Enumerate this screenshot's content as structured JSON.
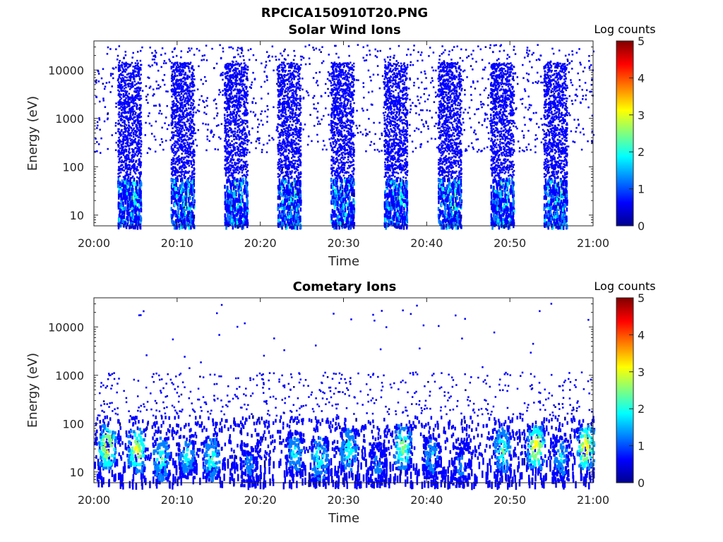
{
  "figure_title": "RPCICA150910T20.PNG",
  "colormap": [
    "#00008f",
    "#0000ff",
    "#0080ff",
    "#00ffff",
    "#80ff80",
    "#ffff00",
    "#ff8000",
    "#ff0000",
    "#800000"
  ],
  "chart_data": [
    {
      "type": "heatmap",
      "title": "Solar Wind Ions",
      "xlabel": "Time",
      "ylabel": "Energy (eV)",
      "x_ticks": [
        "20:00",
        "20:10",
        "20:20",
        "20:30",
        "20:40",
        "20:50",
        "21:00"
      ],
      "x_range_minutes": [
        0,
        60
      ],
      "y_ticks": [
        "10",
        "100",
        "1000",
        "10000"
      ],
      "y_scale": "log",
      "y_range_eV": [
        6,
        40000
      ],
      "colorbar": {
        "label": "Log counts",
        "ticks": [
          "0",
          "1",
          "2",
          "3",
          "4",
          "5"
        ],
        "range": [
          0,
          5
        ]
      },
      "ion_bursts_start_minutes": [
        2.8,
        9.2,
        15.6,
        22.0,
        28.4,
        34.8,
        41.3,
        47.6,
        54.0
      ],
      "background_noise_energy_eV": [
        200,
        35000
      ],
      "peak_log_counts": 2.5
    },
    {
      "type": "heatmap",
      "title": "Cometary Ions",
      "xlabel": "Time",
      "ylabel": "Energy (eV)",
      "x_ticks": [
        "20:00",
        "20:10",
        "20:20",
        "20:30",
        "20:40",
        "20:50",
        "21:00"
      ],
      "x_range_minutes": [
        0,
        60
      ],
      "y_ticks": [
        "10",
        "100",
        "1000",
        "10000"
      ],
      "y_scale": "log",
      "y_range_eV": [
        6,
        40000
      ],
      "colorbar": {
        "label": "Log counts",
        "ticks": [
          "0",
          "1",
          "2",
          "3",
          "4",
          "5"
        ],
        "range": [
          0,
          5
        ]
      },
      "hotspots": [
        {
          "minute": 1.5,
          "energy_eV": 35,
          "log_counts": 3.5
        },
        {
          "minute": 5.0,
          "energy_eV": 30,
          "log_counts": 3.3
        },
        {
          "minute": 8.0,
          "energy_eV": 20,
          "log_counts": 2.3
        },
        {
          "minute": 11.0,
          "energy_eV": 22,
          "log_counts": 2.0
        },
        {
          "minute": 14.0,
          "energy_eV": 20,
          "log_counts": 2.3
        },
        {
          "minute": 18.5,
          "energy_eV": 15,
          "log_counts": 1.3
        },
        {
          "minute": 24.0,
          "energy_eV": 25,
          "log_counts": 2.0
        },
        {
          "minute": 27.0,
          "energy_eV": 20,
          "log_counts": 2.3
        },
        {
          "minute": 30.5,
          "energy_eV": 30,
          "log_counts": 2.3
        },
        {
          "minute": 34.0,
          "energy_eV": 15,
          "log_counts": 1.3
        },
        {
          "minute": 37.0,
          "energy_eV": 35,
          "log_counts": 2.8
        },
        {
          "minute": 40.5,
          "energy_eV": 22,
          "log_counts": 1.8
        },
        {
          "minute": 44.0,
          "energy_eV": 15,
          "log_counts": 1.3
        },
        {
          "minute": 49.0,
          "energy_eV": 30,
          "log_counts": 2.5
        },
        {
          "minute": 53.0,
          "energy_eV": 35,
          "log_counts": 3.5
        },
        {
          "minute": 56.0,
          "energy_eV": 20,
          "log_counts": 1.8
        },
        {
          "minute": 59.0,
          "energy_eV": 35,
          "log_counts": 3.5
        }
      ]
    }
  ]
}
